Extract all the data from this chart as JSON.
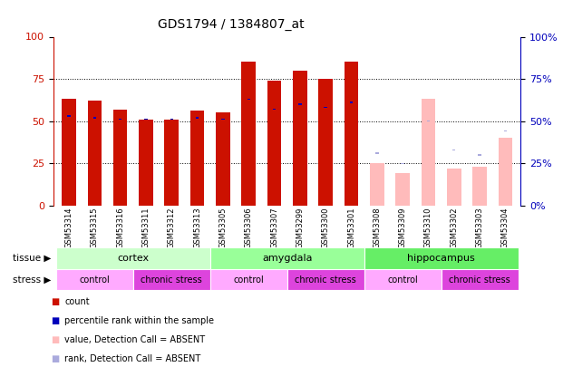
{
  "title": "GDS1794 / 1384807_at",
  "samples": [
    "GSM53314",
    "GSM53315",
    "GSM53316",
    "GSM53311",
    "GSM53312",
    "GSM53313",
    "GSM53305",
    "GSM53306",
    "GSM53307",
    "GSM53299",
    "GSM53300",
    "GSM53301",
    "GSM53308",
    "GSM53309",
    "GSM53310",
    "GSM53302",
    "GSM53303",
    "GSM53304"
  ],
  "count_values": [
    63,
    62,
    57,
    51,
    51,
    56,
    55,
    85,
    74,
    80,
    75,
    85,
    null,
    null,
    null,
    null,
    null,
    null
  ],
  "rank_values": [
    53,
    52,
    51,
    51,
    51,
    52,
    51,
    63,
    57,
    60,
    58,
    61,
    null,
    null,
    null,
    null,
    null,
    null
  ],
  "absent_count": [
    null,
    null,
    null,
    null,
    null,
    null,
    null,
    null,
    null,
    null,
    null,
    null,
    25,
    19,
    63,
    22,
    23,
    40
  ],
  "absent_rank": [
    null,
    null,
    null,
    null,
    null,
    null,
    null,
    null,
    null,
    null,
    null,
    null,
    31,
    25,
    50,
    33,
    30,
    44
  ],
  "tissue_groups": [
    {
      "label": "cortex",
      "start": 0,
      "end": 6,
      "color": "#ccffcc"
    },
    {
      "label": "amygdala",
      "start": 6,
      "end": 12,
      "color": "#99ff99"
    },
    {
      "label": "hippocampus",
      "start": 12,
      "end": 18,
      "color": "#66ee66"
    }
  ],
  "stress_groups": [
    {
      "label": "control",
      "start": 0,
      "end": 3,
      "color": "#ffaaff"
    },
    {
      "label": "chronic stress",
      "start": 3,
      "end": 6,
      "color": "#dd44dd"
    },
    {
      "label": "control",
      "start": 6,
      "end": 9,
      "color": "#ffaaff"
    },
    {
      "label": "chronic stress",
      "start": 9,
      "end": 12,
      "color": "#dd44dd"
    },
    {
      "label": "control",
      "start": 12,
      "end": 15,
      "color": "#ffaaff"
    },
    {
      "label": "chronic stress",
      "start": 15,
      "end": 18,
      "color": "#dd44dd"
    }
  ],
  "ylim": [
    0,
    100
  ],
  "yticks": [
    0,
    25,
    50,
    75,
    100
  ],
  "count_color": "#cc1100",
  "rank_color": "#0000bb",
  "absent_count_color": "#ffbbbb",
  "absent_rank_color": "#aaaadd",
  "bg_color": "#ffffff"
}
